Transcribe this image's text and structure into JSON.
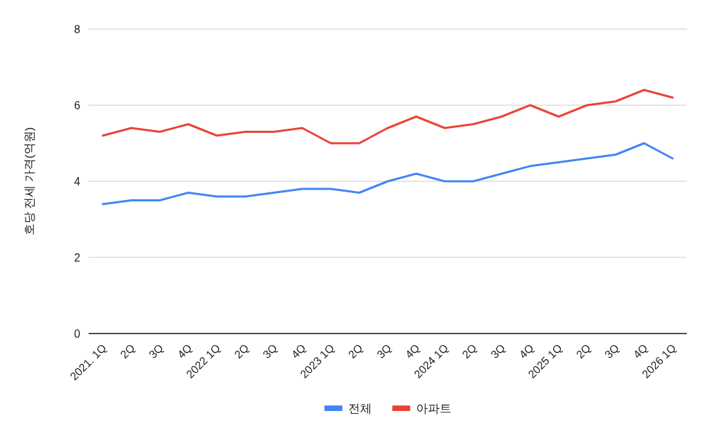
{
  "chart_data": {
    "type": "line",
    "ylabel": "호당 전세 가격(억원)",
    "categories": [
      "2021. 1Q",
      "2Q",
      "3Q",
      "4Q",
      "2022 1Q",
      "2Q",
      "3Q",
      "4Q",
      "2023 1Q",
      "2Q",
      "3Q",
      "4Q",
      "2024 1Q",
      "2Q",
      "3Q",
      "4Q",
      "2025 1Q",
      "2Q",
      "3Q",
      "4Q",
      "2026 1Q"
    ],
    "series": [
      {
        "name": "전체",
        "color": "#4285f4",
        "values": [
          3.4,
          3.5,
          3.5,
          3.7,
          3.6,
          3.6,
          3.7,
          3.8,
          3.8,
          3.7,
          4.0,
          4.2,
          4.0,
          4.0,
          4.2,
          4.4,
          4.5,
          4.6,
          4.7,
          5.0,
          4.6
        ]
      },
      {
        "name": "아파트",
        "color": "#ea4335",
        "values": [
          5.2,
          5.4,
          5.3,
          5.5,
          5.2,
          5.3,
          5.3,
          5.4,
          5.0,
          5.0,
          5.4,
          5.7,
          5.4,
          5.5,
          5.7,
          6.0,
          5.7,
          6.0,
          6.1,
          6.4,
          6.2
        ]
      }
    ],
    "ylim": [
      0,
      8
    ],
    "yticks": [
      0,
      2,
      4,
      6,
      8
    ],
    "grid": "y",
    "legend": "bottom"
  }
}
